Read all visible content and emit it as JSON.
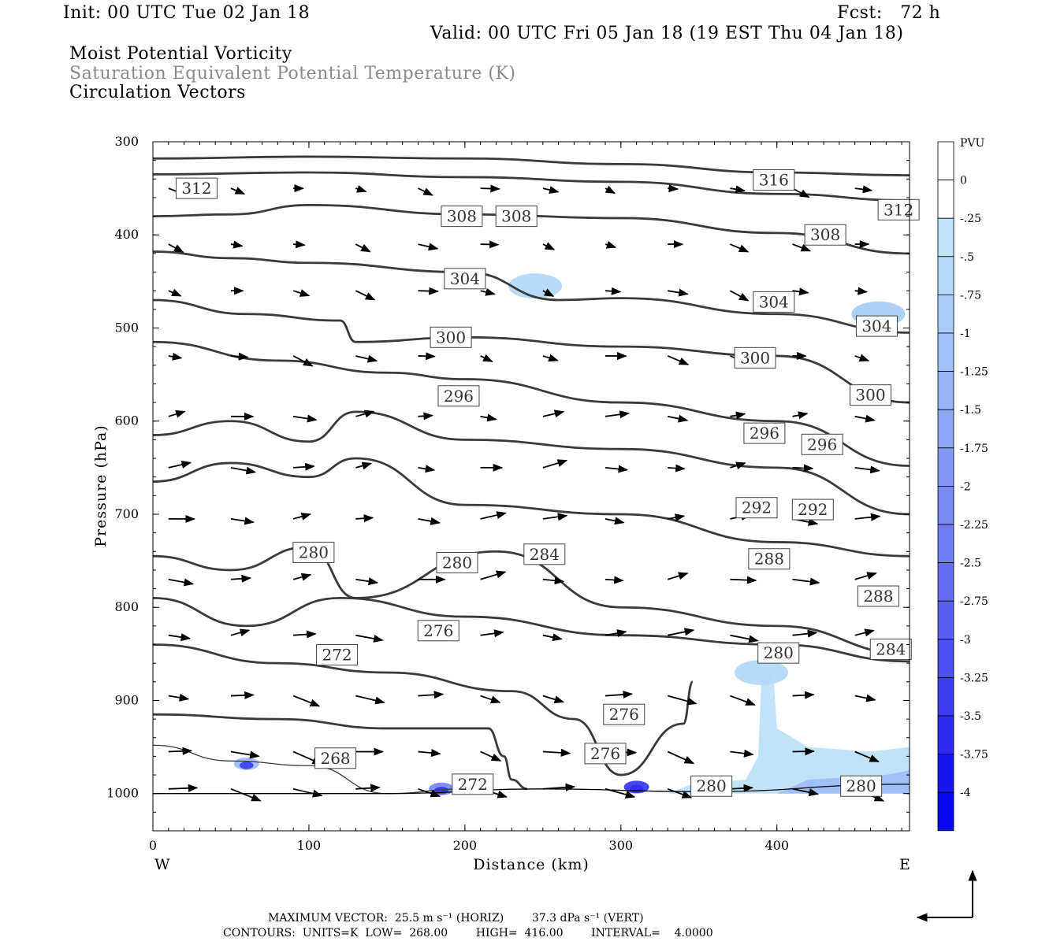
{
  "header": {
    "init": "Init: 00 UTC Tue 02 Jan 18",
    "fcst": "Fcst:   72 h",
    "valid": "Valid: 00 UTC Fri 05 Jan 18 (19 EST Thu 04 Jan 18)",
    "field1": "Moist Potential Vorticity",
    "field2": "Saturation Equivalent Potential Temperature (K)",
    "field3": "Circulation Vectors"
  },
  "footer": {
    "max_vector": "MAXIMUM VECTOR:  25.5 m s⁻¹ (HORIZ)        37.3 dPa s⁻¹ (VERT)",
    "contours": "CONTOURS:  UNITS=K  LOW=  268.00        HIGH=  416.00        INTERVAL=    4.0000"
  },
  "chart_data": {
    "type": "cross-section",
    "xlabel": "Distance (km)",
    "ylabel": "Pressure (hPa)",
    "xlim": [
      0,
      485
    ],
    "ylim": [
      1040,
      300
    ],
    "xticks": [
      0,
      100,
      200,
      300,
      400
    ],
    "yticks": [
      300,
      400,
      500,
      600,
      700,
      800,
      900,
      1000
    ],
    "left_label": "W",
    "right_label": "E",
    "colorbar": {
      "unit": "PVU",
      "labels": [
        "0",
        "-.25",
        "-.5",
        "-.75",
        "-1",
        "-1.25",
        "-1.5",
        "-1.75",
        "-2",
        "-2.25",
        "-2.5",
        "-2.75",
        "-3",
        "-3.25",
        "-3.5",
        "-3.75",
        "-4"
      ],
      "colors": [
        "#ffffff",
        "#ffffff",
        "#bfe4fa",
        "#b3d9fa",
        "#a8cdf8",
        "#9fc1f7",
        "#96b3f6",
        "#8ca6f5",
        "#8398f4",
        "#7a8af3",
        "#707cf2",
        "#666df1",
        "#5c5ef0",
        "#4f4ef0",
        "#3f3cf0",
        "#2e2af0",
        "#1a16f0",
        "#0808f0"
      ]
    },
    "theta_e_contours": [
      {
        "value": 316,
        "points": [
          [
            0,
            318
          ],
          [
            100,
            316
          ],
          [
            200,
            318
          ],
          [
            300,
            324
          ],
          [
            400,
            333
          ],
          [
            485,
            336
          ]
        ],
        "labels": [
          [
            398,
            341
          ]
        ]
      },
      {
        "value": 312,
        "points": [
          [
            0,
            335
          ],
          [
            100,
            333
          ],
          [
            200,
            338
          ],
          [
            300,
            343
          ],
          [
            400,
            356
          ],
          [
            485,
            363
          ]
        ],
        "labels": [
          [
            28,
            350
          ],
          [
            478,
            373
          ]
        ]
      },
      {
        "value": 308,
        "points": [
          [
            0,
            380
          ],
          [
            50,
            378
          ],
          [
            100,
            368
          ],
          [
            200,
            378
          ],
          [
            300,
            382
          ],
          [
            400,
            398
          ],
          [
            485,
            420
          ]
        ],
        "labels": [
          [
            198,
            380
          ],
          [
            233,
            380
          ],
          [
            431,
            400
          ]
        ]
      },
      {
        "value": 304,
        "points": [
          [
            0,
            418
          ],
          [
            50,
            425
          ],
          [
            100,
            430
          ],
          [
            200,
            440
          ],
          [
            260,
            470
          ],
          [
            300,
            468
          ],
          [
            400,
            485
          ],
          [
            485,
            505
          ]
        ],
        "labels": [
          [
            200,
            447
          ],
          [
            398,
            472
          ],
          [
            464,
            498
          ]
        ]
      },
      {
        "value": 300,
        "points": [
          [
            0,
            470
          ],
          [
            60,
            485
          ],
          [
            120,
            492
          ],
          [
            130,
            515
          ],
          [
            200,
            510
          ],
          [
            300,
            520
          ],
          [
            400,
            530
          ],
          [
            485,
            580
          ]
        ],
        "labels": [
          [
            191,
            510
          ],
          [
            386,
            532
          ],
          [
            460,
            572
          ]
        ]
      },
      {
        "value": 296,
        "points": [
          [
            0,
            515
          ],
          [
            80,
            535
          ],
          [
            150,
            548
          ],
          [
            200,
            555
          ],
          [
            300,
            580
          ],
          [
            400,
            600
          ],
          [
            485,
            648
          ]
        ],
        "labels": [
          [
            196,
            573
          ],
          [
            392,
            613
          ],
          [
            429,
            625
          ]
        ]
      },
      {
        "value": 292,
        "points": [
          [
            0,
            615
          ],
          [
            50,
            600
          ],
          [
            100,
            622
          ],
          [
            130,
            590
          ],
          [
            200,
            620
          ],
          [
            300,
            630
          ],
          [
            400,
            650
          ],
          [
            485,
            700
          ]
        ],
        "labels": [
          [
            387,
            693
          ],
          [
            423,
            695
          ]
        ]
      },
      {
        "value": 288,
        "points": [
          [
            0,
            665
          ],
          [
            50,
            645
          ],
          [
            100,
            660
          ],
          [
            130,
            640
          ],
          [
            200,
            690
          ],
          [
            300,
            700
          ],
          [
            400,
            730
          ],
          [
            485,
            745
          ]
        ],
        "labels": [
          [
            395,
            748
          ],
          [
            465,
            788
          ]
        ]
      },
      {
        "value": 284,
        "points": [
          [
            0,
            745
          ],
          [
            50,
            760
          ],
          [
            100,
            735
          ],
          [
            130,
            790
          ],
          [
            220,
            740
          ],
          [
            300,
            800
          ],
          [
            400,
            820
          ],
          [
            485,
            850
          ]
        ],
        "labels": [
          [
            251,
            743
          ],
          [
            473,
            845
          ]
        ]
      },
      {
        "value": 280,
        "points": [
          [
            0,
            790
          ],
          [
            60,
            820
          ],
          [
            120,
            790
          ],
          [
            200,
            810
          ],
          [
            300,
            830
          ],
          [
            400,
            840
          ],
          [
            485,
            858
          ]
        ],
        "labels": [
          [
            103,
            741
          ],
          [
            195,
            752
          ],
          [
            401,
            849
          ]
        ]
      },
      {
        "value": 276,
        "points": [
          [
            0,
            840
          ],
          [
            80,
            860
          ],
          [
            150,
            870
          ],
          [
            230,
            890
          ],
          [
            270,
            920
          ],
          [
            300,
            980
          ],
          [
            340,
            925
          ],
          [
            346,
            880
          ]
        ],
        "labels": [
          [
            183,
            825
          ],
          [
            302,
            915
          ],
          [
            290,
            957
          ]
        ]
      },
      {
        "value": 272,
        "points": [
          [
            0,
            915
          ],
          [
            80,
            920
          ],
          [
            150,
            930
          ],
          [
            215,
            930
          ],
          [
            225,
            960
          ],
          [
            230,
            985
          ],
          [
            240,
            995
          ]
        ],
        "labels": [
          [
            118,
            851
          ],
          [
            205,
            990
          ]
        ]
      },
      {
        "value": 268,
        "points": [
          [
            0,
            948
          ],
          [
            50,
            965
          ],
          [
            100,
            970
          ],
          [
            150,
            1000
          ],
          [
            200,
            995
          ]
        ],
        "labels": [
          [
            117,
            962
          ]
        ]
      }
    ],
    "surface_contours": [
      {
        "value": 280,
        "labels": [
          [
            358,
            992
          ],
          [
            454,
            992
          ]
        ]
      }
    ],
    "mpv_regions": [
      {
        "pvu": "-0.5",
        "center": [
          245,
          455
        ]
      },
      {
        "pvu": "-0.75",
        "center": [
          465,
          485
        ]
      },
      {
        "pvu": "-0.5",
        "center": [
          390,
          870
        ]
      },
      {
        "pvu": "-3.25",
        "center": [
          310,
          993
        ]
      },
      {
        "pvu": "-1",
        "center": [
          60,
          968
        ]
      },
      {
        "pvu": "-2",
        "center": [
          185,
          995
        ]
      }
    ]
  }
}
